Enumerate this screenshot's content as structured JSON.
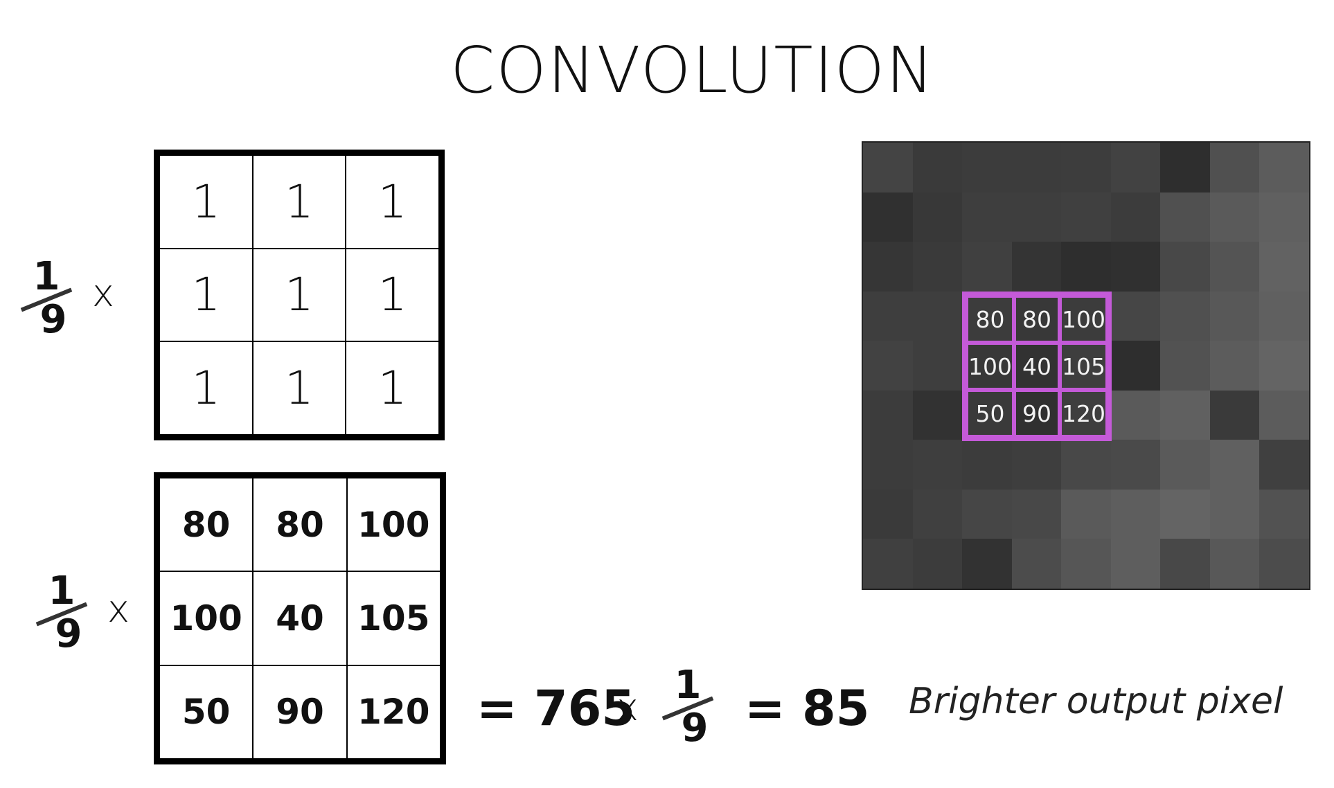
{
  "title": "CONVOLUTION",
  "kernel_row": {
    "fraction": {
      "numerator": "1",
      "denominator": "9"
    },
    "times": "x",
    "cells": [
      "1",
      "1",
      "1",
      "1",
      "1",
      "1",
      "1",
      "1",
      "1"
    ]
  },
  "patch_row": {
    "fraction": {
      "numerator": "1",
      "denominator": "9"
    },
    "times": "x",
    "cells": [
      "80",
      "80",
      "100",
      "100",
      "40",
      "105",
      "50",
      "90",
      "120"
    ]
  },
  "equation": {
    "sum_text": "= 765",
    "times": "x",
    "fraction": {
      "numerator": "1",
      "denominator": "9"
    },
    "result_text": "= 85"
  },
  "pixel_image": {
    "grid_size": 9,
    "gray_levels": [
      [
        68,
        58,
        60,
        60,
        61,
        66,
        46,
        80,
        92
      ],
      [
        48,
        56,
        62,
        62,
        64,
        60,
        80,
        90,
        96
      ],
      [
        54,
        58,
        64,
        52,
        46,
        48,
        72,
        84,
        98
      ],
      [
        62,
        62,
        60,
        56,
        60,
        70,
        80,
        88,
        96
      ],
      [
        66,
        62,
        56,
        50,
        62,
        46,
        82,
        92,
        100
      ],
      [
        60,
        50,
        58,
        48,
        62,
        90,
        96,
        58,
        92
      ],
      [
        60,
        62,
        60,
        62,
        72,
        74,
        90,
        96,
        64
      ],
      [
        58,
        64,
        70,
        72,
        90,
        94,
        100,
        96,
        82
      ],
      [
        64,
        60,
        50,
        76,
        86,
        94,
        72,
        88,
        76
      ]
    ],
    "highlight_color": "#c45ad8",
    "highlight_values": [
      "80",
      "80",
      "100",
      "100",
      "40",
      "105",
      "50",
      "90",
      "120"
    ]
  },
  "caption": "Brighter output pixel"
}
